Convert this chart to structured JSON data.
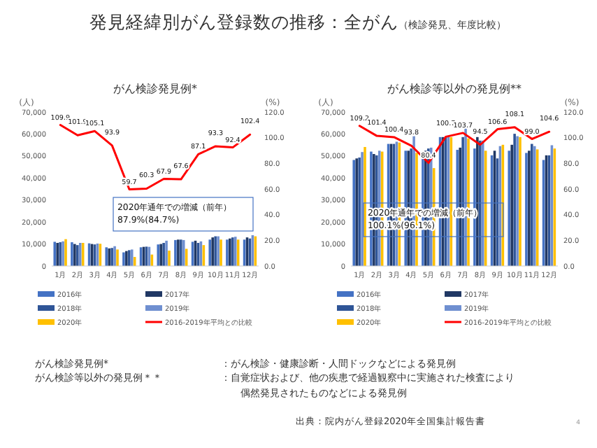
{
  "chart_data": [
    {
      "type": "bar",
      "title": "がん検診発見例*",
      "ylabel": "(人)",
      "y2label": "(%)",
      "categories": [
        "1月",
        "2月",
        "3月",
        "4月",
        "5月",
        "6月",
        "7月",
        "8月",
        "9月",
        "10月",
        "11月",
        "12月"
      ],
      "ylim": [
        0,
        70000
      ],
      "yticks": [
        {
          "value": 0,
          "label": "0"
        },
        {
          "value": 10000,
          "label": "10,000"
        },
        {
          "value": 20000,
          "label": "20,000"
        },
        {
          "value": 30000,
          "label": "30,000"
        },
        {
          "value": 40000,
          "label": "40,000"
        },
        {
          "value": 50000,
          "label": "50,000"
        },
        {
          "value": 60000,
          "label": "60,000"
        },
        {
          "value": 70000,
          "label": "70,000"
        }
      ],
      "y2lim": [
        0,
        120
      ],
      "y2ticks": [
        {
          "value": 0,
          "label": "0.0"
        },
        {
          "value": 20,
          "label": "20.0"
        },
        {
          "value": 40,
          "label": "40.0"
        },
        {
          "value": 60,
          "label": "60.0"
        },
        {
          "value": 80,
          "label": "80.0"
        },
        {
          "value": 100,
          "label": "100.0"
        },
        {
          "value": 120,
          "label": "120.0"
        }
      ],
      "legend": "bottom",
      "annotations": [
        "2020年通年での増減（前年）",
        "87.9%(84.7%)"
      ],
      "series": [
        {
          "name": "2016年",
          "color": "#4472c4",
          "values": [
            11000,
            10800,
            10300,
            8500,
            6200,
            8500,
            9800,
            11800,
            11000,
            12000,
            12000,
            12000
          ]
        },
        {
          "name": "2017年",
          "color": "#203864",
          "values": [
            10500,
            10000,
            10000,
            8000,
            6800,
            8700,
            10000,
            12000,
            11500,
            13000,
            12500,
            13000
          ]
        },
        {
          "name": "2018年",
          "color": "#2f5597",
          "values": [
            10800,
            9500,
            9800,
            8200,
            7200,
            8800,
            10500,
            12000,
            10500,
            13500,
            13000,
            12500
          ]
        },
        {
          "name": "2019年",
          "color": "#6f8fd0",
          "values": [
            11200,
            10500,
            10200,
            9000,
            7500,
            8700,
            11500,
            11800,
            11200,
            13500,
            13300,
            14000
          ]
        },
        {
          "name": "2020年",
          "color": "#ffc000",
          "values": [
            12200,
            10500,
            10100,
            7500,
            4100,
            5200,
            7000,
            7800,
            9500,
            12000,
            12000,
            13500
          ]
        },
        {
          "name": "2016-2019年平均との比較",
          "type": "line",
          "axis": "y2",
          "color": "#ff0000",
          "value_labels": [
            "109.9",
            "101.9",
            "105.1",
            "93.9",
            "59.7",
            "60.3",
            "67.9",
            "67.6",
            "87.1",
            "93.3",
            "92.4",
            "102.4"
          ],
          "values": [
            109.9,
            101.9,
            105.1,
            93.9,
            59.7,
            60.3,
            67.9,
            67.6,
            87.1,
            93.3,
            92.4,
            102.4
          ]
        }
      ]
    },
    {
      "type": "bar",
      "title": "がん検診等以外の発見例**",
      "ylabel": "(人)",
      "y2label": "(%)",
      "categories": [
        "1月",
        "2月",
        "3月",
        "4月",
        "5月",
        "6月",
        "7月",
        "8月",
        "9月",
        "10月",
        "11月",
        "12月"
      ],
      "ylim": [
        0,
        70000
      ],
      "yticks": [
        {
          "value": 0,
          "label": "0"
        },
        {
          "value": 10000,
          "label": "10,000"
        },
        {
          "value": 20000,
          "label": "20,000"
        },
        {
          "value": 30000,
          "label": "30,000"
        },
        {
          "value": 40000,
          "label": "40,000"
        },
        {
          "value": 50000,
          "label": "50,000"
        },
        {
          "value": 60000,
          "label": "60,000"
        },
        {
          "value": 70000,
          "label": "70,000"
        }
      ],
      "y2lim": [
        0,
        120
      ],
      "y2ticks": [
        {
          "value": 0,
          "label": "0.0"
        },
        {
          "value": 20,
          "label": "20.0"
        },
        {
          "value": 40,
          "label": "40.0"
        },
        {
          "value": 60,
          "label": "60.0"
        },
        {
          "value": 80,
          "label": "80.0"
        },
        {
          "value": 100,
          "label": "100.0"
        },
        {
          "value": 120,
          "label": "120.0"
        }
      ],
      "legend": "bottom",
      "annotations": [
        "2020年通年での増減（前年）",
        "100.1%(96.1%)"
      ],
      "series": [
        {
          "name": "2016年",
          "color": "#4472c4",
          "values": [
            48200,
            52000,
            55500,
            52400,
            50900,
            58600,
            52800,
            53400,
            50300,
            52400,
            51400,
            48200
          ]
        },
        {
          "name": "2017年",
          "color": "#203864",
          "values": [
            48900,
            50900,
            55500,
            52400,
            52400,
            58600,
            53800,
            58600,
            52400,
            55100,
            52400,
            50300
          ]
        },
        {
          "name": "2018年",
          "color": "#2f5597",
          "values": [
            49300,
            50300,
            55500,
            53400,
            53400,
            58600,
            58600,
            57000,
            48900,
            60100,
            55500,
            50300
          ]
        },
        {
          "name": "2019年",
          "color": "#6f8fd0",
          "values": [
            51800,
            52400,
            56500,
            59000,
            53800,
            59200,
            62800,
            57000,
            54500,
            59000,
            54500,
            54900
          ]
        },
        {
          "name": "2020年",
          "color": "#ffc000",
          "values": [
            54100,
            52000,
            56100,
            51400,
            44500,
            58600,
            58000,
            52400,
            55100,
            58600,
            53000,
            53400
          ]
        },
        {
          "name": "2016-2019年平均との比較",
          "type": "line",
          "axis": "y2",
          "color": "#ff0000",
          "value_labels": [
            "109.2",
            "101.4",
            "100.4",
            "93.8",
            "80.4",
            "100.7",
            "103.7",
            "94.5",
            "106.6",
            "108.1",
            "99.0",
            "104.6"
          ],
          "values": [
            109.2,
            101.4,
            100.4,
            93.8,
            80.4,
            100.7,
            103.7,
            94.5,
            106.6,
            108.1,
            99.0,
            104.6
          ]
        }
      ]
    },
    {
      "type": "other",
      "title": "発見経緯別がん登録数の推移：全がん",
      "subtitle": "（検診発見、年度比較）",
      "annotations": [
        "がん検診発見例*",
        "：がん検診・健康診断・人間ドックなどによる発見例",
        "がん検診等以外の発見例＊＊",
        "：自覚症状および、他の疾患で経過観察中に実施された検査により",
        "偶然発見されたものなどによる発見例",
        "出典：院内がん登録2020年全国集計報告書",
        "4"
      ]
    }
  ]
}
